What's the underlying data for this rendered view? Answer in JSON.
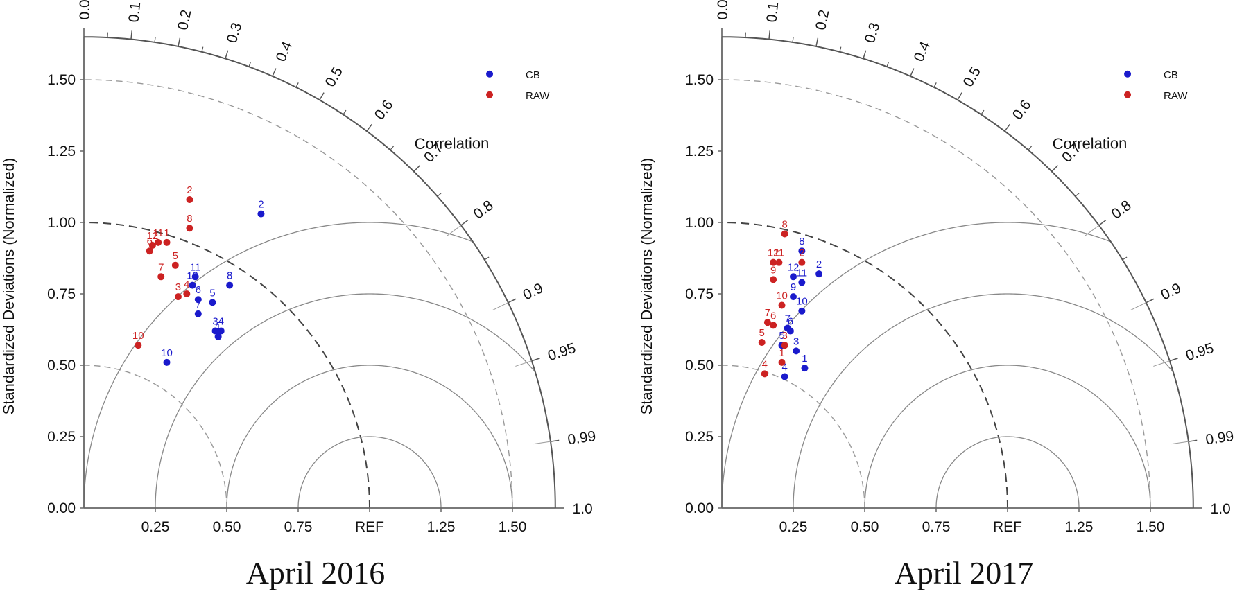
{
  "chart_data": [
    {
      "type": "scatter",
      "subtype": "taylor-diagram",
      "title": "April 2016",
      "ylabel": "Standardized Deviations (Normalized)",
      "corr_axis_label": "Correlation",
      "ylim": [
        0,
        1.65
      ],
      "xlim": [
        0,
        1.65
      ],
      "y_ticks": [
        "0.00",
        "0.25",
        "0.50",
        "0.75",
        "1.00",
        "1.25",
        "1.50"
      ],
      "x_ticks": [
        "0.25",
        "0.50",
        "0.75",
        "REF",
        "1.25",
        "1.50"
      ],
      "x_tick_values": [
        0.25,
        0.5,
        0.75,
        1.0,
        1.25,
        1.5
      ],
      "corr_ticks": [
        "0.0",
        "0.1",
        "0.2",
        "0.3",
        "0.4",
        "0.5",
        "0.6",
        "0.7",
        "0.8",
        "0.9",
        "0.95",
        "0.99",
        "1.0"
      ],
      "corr_tick_values": [
        0.0,
        0.1,
        0.2,
        0.3,
        0.4,
        0.5,
        0.6,
        0.7,
        0.8,
        0.9,
        0.95,
        0.99,
        1.0
      ],
      "legend": [
        "CB",
        "RAW"
      ],
      "legend_position": "top-right",
      "series": [
        {
          "name": "CB",
          "color": "#1a1acc",
          "points": [
            {
              "label": "1",
              "x": 0.47,
              "y": 0.6
            },
            {
              "label": "2",
              "x": 0.62,
              "y": 1.03
            },
            {
              "label": "3",
              "x": 0.46,
              "y": 0.62
            },
            {
              "label": "4",
              "x": 0.48,
              "y": 0.62
            },
            {
              "label": "5",
              "x": 0.45,
              "y": 0.72
            },
            {
              "label": "6",
              "x": 0.4,
              "y": 0.73
            },
            {
              "label": "7",
              "x": 0.4,
              "y": 0.68
            },
            {
              "label": "8",
              "x": 0.51,
              "y": 0.78
            },
            {
              "label": "10",
              "x": 0.29,
              "y": 0.51
            },
            {
              "label": "11",
              "x": 0.39,
              "y": 0.81
            },
            {
              "label": "12",
              "x": 0.38,
              "y": 0.78
            }
          ]
        },
        {
          "name": "RAW",
          "color": "#cc2222",
          "points": [
            {
              "label": "1",
              "x": 0.29,
              "y": 0.93
            },
            {
              "label": "2",
              "x": 0.37,
              "y": 1.08
            },
            {
              "label": "3",
              "x": 0.33,
              "y": 0.74
            },
            {
              "label": "4",
              "x": 0.36,
              "y": 0.75
            },
            {
              "label": "5",
              "x": 0.32,
              "y": 0.85
            },
            {
              "label": "6",
              "x": 0.23,
              "y": 0.9
            },
            {
              "label": "7",
              "x": 0.27,
              "y": 0.81
            },
            {
              "label": "8",
              "x": 0.37,
              "y": 0.98
            },
            {
              "label": "10",
              "x": 0.19,
              "y": 0.57
            },
            {
              "label": "11",
              "x": 0.26,
              "y": 0.93
            },
            {
              "label": "12",
              "x": 0.24,
              "y": 0.92
            }
          ]
        }
      ]
    },
    {
      "type": "scatter",
      "subtype": "taylor-diagram",
      "title": "April 2017",
      "ylabel": "Standardized Deviations (Normalized)",
      "corr_axis_label": "Correlation",
      "ylim": [
        0,
        1.65
      ],
      "xlim": [
        0,
        1.65
      ],
      "y_ticks": [
        "0.00",
        "0.25",
        "0.50",
        "0.75",
        "1.00",
        "1.25",
        "1.50"
      ],
      "x_ticks": [
        "0.25",
        "0.50",
        "0.75",
        "REF",
        "1.25",
        "1.50"
      ],
      "x_tick_values": [
        0.25,
        0.5,
        0.75,
        1.0,
        1.25,
        1.5
      ],
      "corr_ticks": [
        "0.0",
        "0.1",
        "0.2",
        "0.3",
        "0.4",
        "0.5",
        "0.6",
        "0.7",
        "0.8",
        "0.9",
        "0.95",
        "0.99",
        "1.0"
      ],
      "corr_tick_values": [
        0.0,
        0.1,
        0.2,
        0.3,
        0.4,
        0.5,
        0.6,
        0.7,
        0.8,
        0.9,
        0.95,
        0.99,
        1.0
      ],
      "legend": [
        "CB",
        "RAW"
      ],
      "legend_position": "top-right",
      "series": [
        {
          "name": "CB",
          "color": "#1a1acc",
          "points": [
            {
              "label": "1",
              "x": 0.29,
              "y": 0.49
            },
            {
              "label": "2",
              "x": 0.34,
              "y": 0.82
            },
            {
              "label": "3",
              "x": 0.26,
              "y": 0.55
            },
            {
              "label": "4",
              "x": 0.22,
              "y": 0.46
            },
            {
              "label": "5",
              "x": 0.21,
              "y": 0.57
            },
            {
              "label": "6",
              "x": 0.24,
              "y": 0.62
            },
            {
              "label": "7",
              "x": 0.23,
              "y": 0.63
            },
            {
              "label": "8",
              "x": 0.28,
              "y": 0.9
            },
            {
              "label": "9",
              "x": 0.25,
              "y": 0.74
            },
            {
              "label": "10",
              "x": 0.28,
              "y": 0.69
            },
            {
              "label": "11",
              "x": 0.28,
              "y": 0.79
            },
            {
              "label": "12",
              "x": 0.25,
              "y": 0.81
            }
          ]
        },
        {
          "name": "RAW",
          "color": "#cc2222",
          "points": [
            {
              "label": "1",
              "x": 0.21,
              "y": 0.51
            },
            {
              "label": "2",
              "x": 0.28,
              "y": 0.86
            },
            {
              "label": "3",
              "x": 0.22,
              "y": 0.57
            },
            {
              "label": "4",
              "x": 0.15,
              "y": 0.47
            },
            {
              "label": "5",
              "x": 0.14,
              "y": 0.58
            },
            {
              "label": "6",
              "x": 0.18,
              "y": 0.64
            },
            {
              "label": "7",
              "x": 0.16,
              "y": 0.65
            },
            {
              "label": "8",
              "x": 0.22,
              "y": 0.96
            },
            {
              "label": "9",
              "x": 0.18,
              "y": 0.8
            },
            {
              "label": "10",
              "x": 0.21,
              "y": 0.71
            },
            {
              "label": "11",
              "x": 0.2,
              "y": 0.86
            },
            {
              "label": "12",
              "x": 0.18,
              "y": 0.86
            }
          ]
        }
      ]
    }
  ]
}
